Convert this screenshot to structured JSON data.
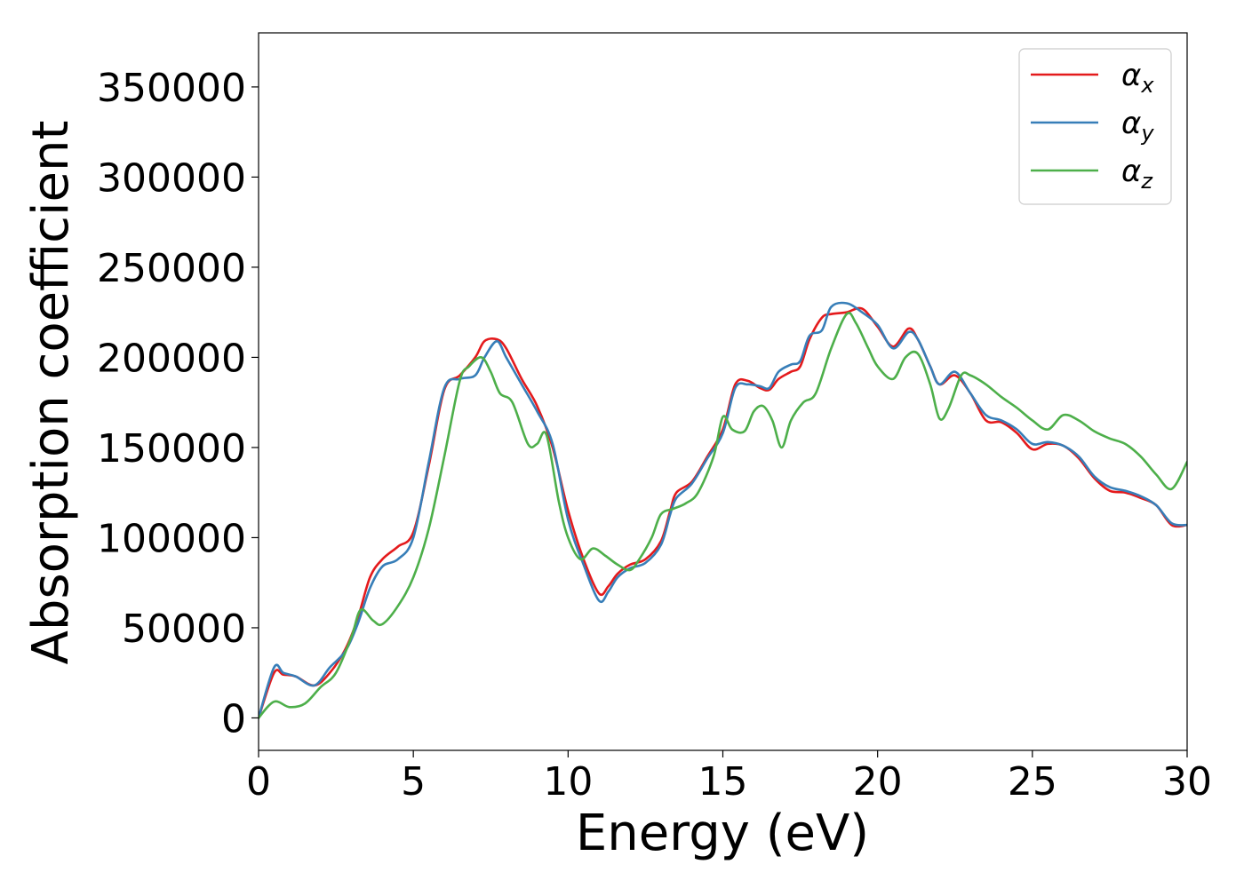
{
  "chart_data": {
    "type": "line",
    "title": "",
    "xlabel": "Energy (eV)",
    "ylabel": "Absorption coefficient",
    "xlim": [
      0,
      30
    ],
    "ylim": [
      -18000,
      380000
    ],
    "xticks": [
      0,
      5,
      10,
      15,
      20,
      25,
      30
    ],
    "yticks": [
      0,
      50000,
      100000,
      150000,
      200000,
      250000,
      300000,
      350000
    ],
    "grid": false,
    "legend_position": "top-right",
    "series": [
      {
        "name": "α_x",
        "label_base": "α",
        "label_sub": "x",
        "color": "#e41a1c",
        "x": [
          0,
          0.5,
          0.8,
          1.2,
          1.8,
          2.3,
          2.8,
          3.2,
          3.6,
          4.0,
          4.5,
          5.0,
          5.5,
          6.0,
          6.5,
          7.0,
          7.3,
          7.7,
          8.0,
          8.5,
          9.0,
          9.5,
          10.0,
          10.5,
          11.0,
          11.3,
          11.6,
          12.0,
          12.5,
          13.0,
          13.3,
          13.5,
          14.0,
          14.5,
          15.0,
          15.4,
          15.8,
          16.2,
          16.5,
          16.8,
          17.2,
          17.5,
          17.8,
          18.2,
          18.5,
          19.0,
          19.5,
          20.0,
          20.5,
          21.0,
          21.3,
          21.7,
          22.0,
          22.5,
          23.0,
          23.5,
          24.0,
          24.5,
          25.0,
          25.5,
          26.0,
          26.5,
          27.0,
          27.5,
          28.0,
          28.5,
          29.0,
          29.5,
          30.0
        ],
        "y": [
          0,
          25000,
          24000,
          23000,
          18000,
          25000,
          38000,
          55000,
          78000,
          88000,
          95000,
          103000,
          140000,
          182000,
          190000,
          200000,
          209000,
          210000,
          205000,
          188000,
          173000,
          150000,
          115000,
          88000,
          69000,
          73000,
          80000,
          85000,
          88000,
          98000,
          115000,
          125000,
          131000,
          145000,
          160000,
          185000,
          187000,
          183000,
          182000,
          188000,
          192000,
          195000,
          210000,
          222000,
          224000,
          225000,
          227000,
          217000,
          206000,
          216000,
          210000,
          195000,
          185000,
          190000,
          180000,
          165000,
          164000,
          158000,
          149000,
          152000,
          151000,
          144000,
          133000,
          126000,
          125000,
          122000,
          118000,
          107000,
          107000
        ]
      },
      {
        "name": "α_y",
        "label_base": "α",
        "label_sub": "y",
        "color": "#377eb8",
        "x": [
          0,
          0.5,
          0.8,
          1.2,
          1.8,
          2.3,
          2.8,
          3.2,
          3.6,
          4.0,
          4.5,
          5.0,
          5.5,
          6.0,
          6.5,
          7.0,
          7.3,
          7.7,
          8.0,
          8.5,
          9.0,
          9.5,
          10.0,
          10.5,
          11.0,
          11.3,
          11.6,
          12.0,
          12.5,
          13.0,
          13.3,
          13.5,
          14.0,
          14.5,
          15.0,
          15.4,
          15.8,
          16.2,
          16.5,
          16.8,
          17.2,
          17.5,
          17.8,
          18.2,
          18.5,
          19.0,
          19.5,
          20.0,
          20.5,
          21.0,
          21.3,
          21.7,
          22.0,
          22.5,
          23.0,
          23.5,
          24.0,
          24.5,
          25.0,
          25.5,
          26.0,
          26.5,
          27.0,
          27.5,
          28.0,
          28.5,
          29.0,
          29.5,
          30.0
        ],
        "y": [
          0,
          28000,
          25000,
          23000,
          18000,
          28000,
          37000,
          52000,
          72000,
          84000,
          88000,
          100000,
          142000,
          183000,
          188000,
          190000,
          200000,
          209000,
          200000,
          185000,
          170000,
          152000,
          110000,
          85000,
          65000,
          70000,
          78000,
          83000,
          86000,
          96000,
          113000,
          122000,
          130000,
          144000,
          158000,
          183000,
          185000,
          184000,
          183000,
          192000,
          196000,
          198000,
          212000,
          215000,
          228000,
          230000,
          225000,
          218000,
          205000,
          214000,
          210000,
          195000,
          185000,
          192000,
          180000,
          168000,
          165000,
          160000,
          152000,
          153000,
          151000,
          145000,
          134000,
          128000,
          126000,
          123000,
          118000,
          108000,
          107000
        ]
      },
      {
        "name": "α_z",
        "label_base": "α",
        "label_sub": "z",
        "color": "#4daf4a",
        "x": [
          0,
          0.5,
          1.0,
          1.5,
          2.0,
          2.5,
          3.0,
          3.3,
          3.7,
          4.0,
          4.5,
          5.0,
          5.5,
          6.0,
          6.5,
          6.8,
          7.2,
          7.5,
          7.8,
          8.2,
          8.7,
          9.0,
          9.3,
          9.7,
          10.0,
          10.4,
          10.8,
          11.2,
          11.6,
          12.0,
          12.3,
          12.7,
          13.0,
          13.4,
          13.8,
          14.2,
          14.7,
          15.0,
          15.3,
          15.7,
          16.0,
          16.3,
          16.6,
          16.9,
          17.2,
          17.6,
          18.0,
          18.5,
          19.0,
          19.3,
          19.7,
          20.0,
          20.5,
          20.9,
          21.3,
          21.7,
          22.0,
          22.3,
          22.7,
          23.0,
          23.5,
          24.0,
          24.5,
          25.0,
          25.5,
          26.0,
          26.5,
          27.0,
          27.5,
          28.0,
          28.5,
          29.0,
          29.5,
          30.0
        ],
        "y": [
          0,
          9000,
          6000,
          8000,
          17000,
          25000,
          45000,
          60000,
          54000,
          52000,
          62000,
          78000,
          105000,
          145000,
          187000,
          195000,
          200000,
          192000,
          180000,
          175000,
          152000,
          152000,
          157000,
          120000,
          100000,
          88000,
          94000,
          90000,
          85000,
          82000,
          88000,
          100000,
          113000,
          116000,
          119000,
          125000,
          145000,
          167000,
          160000,
          159000,
          170000,
          173000,
          165000,
          150000,
          165000,
          175000,
          180000,
          205000,
          224000,
          219000,
          205000,
          195000,
          188000,
          200000,
          202000,
          185000,
          166000,
          172000,
          190000,
          190000,
          185000,
          178000,
          172000,
          165000,
          160000,
          168000,
          165000,
          159000,
          155000,
          152000,
          145000,
          135000,
          127000,
          142000
        ]
      }
    ]
  }
}
